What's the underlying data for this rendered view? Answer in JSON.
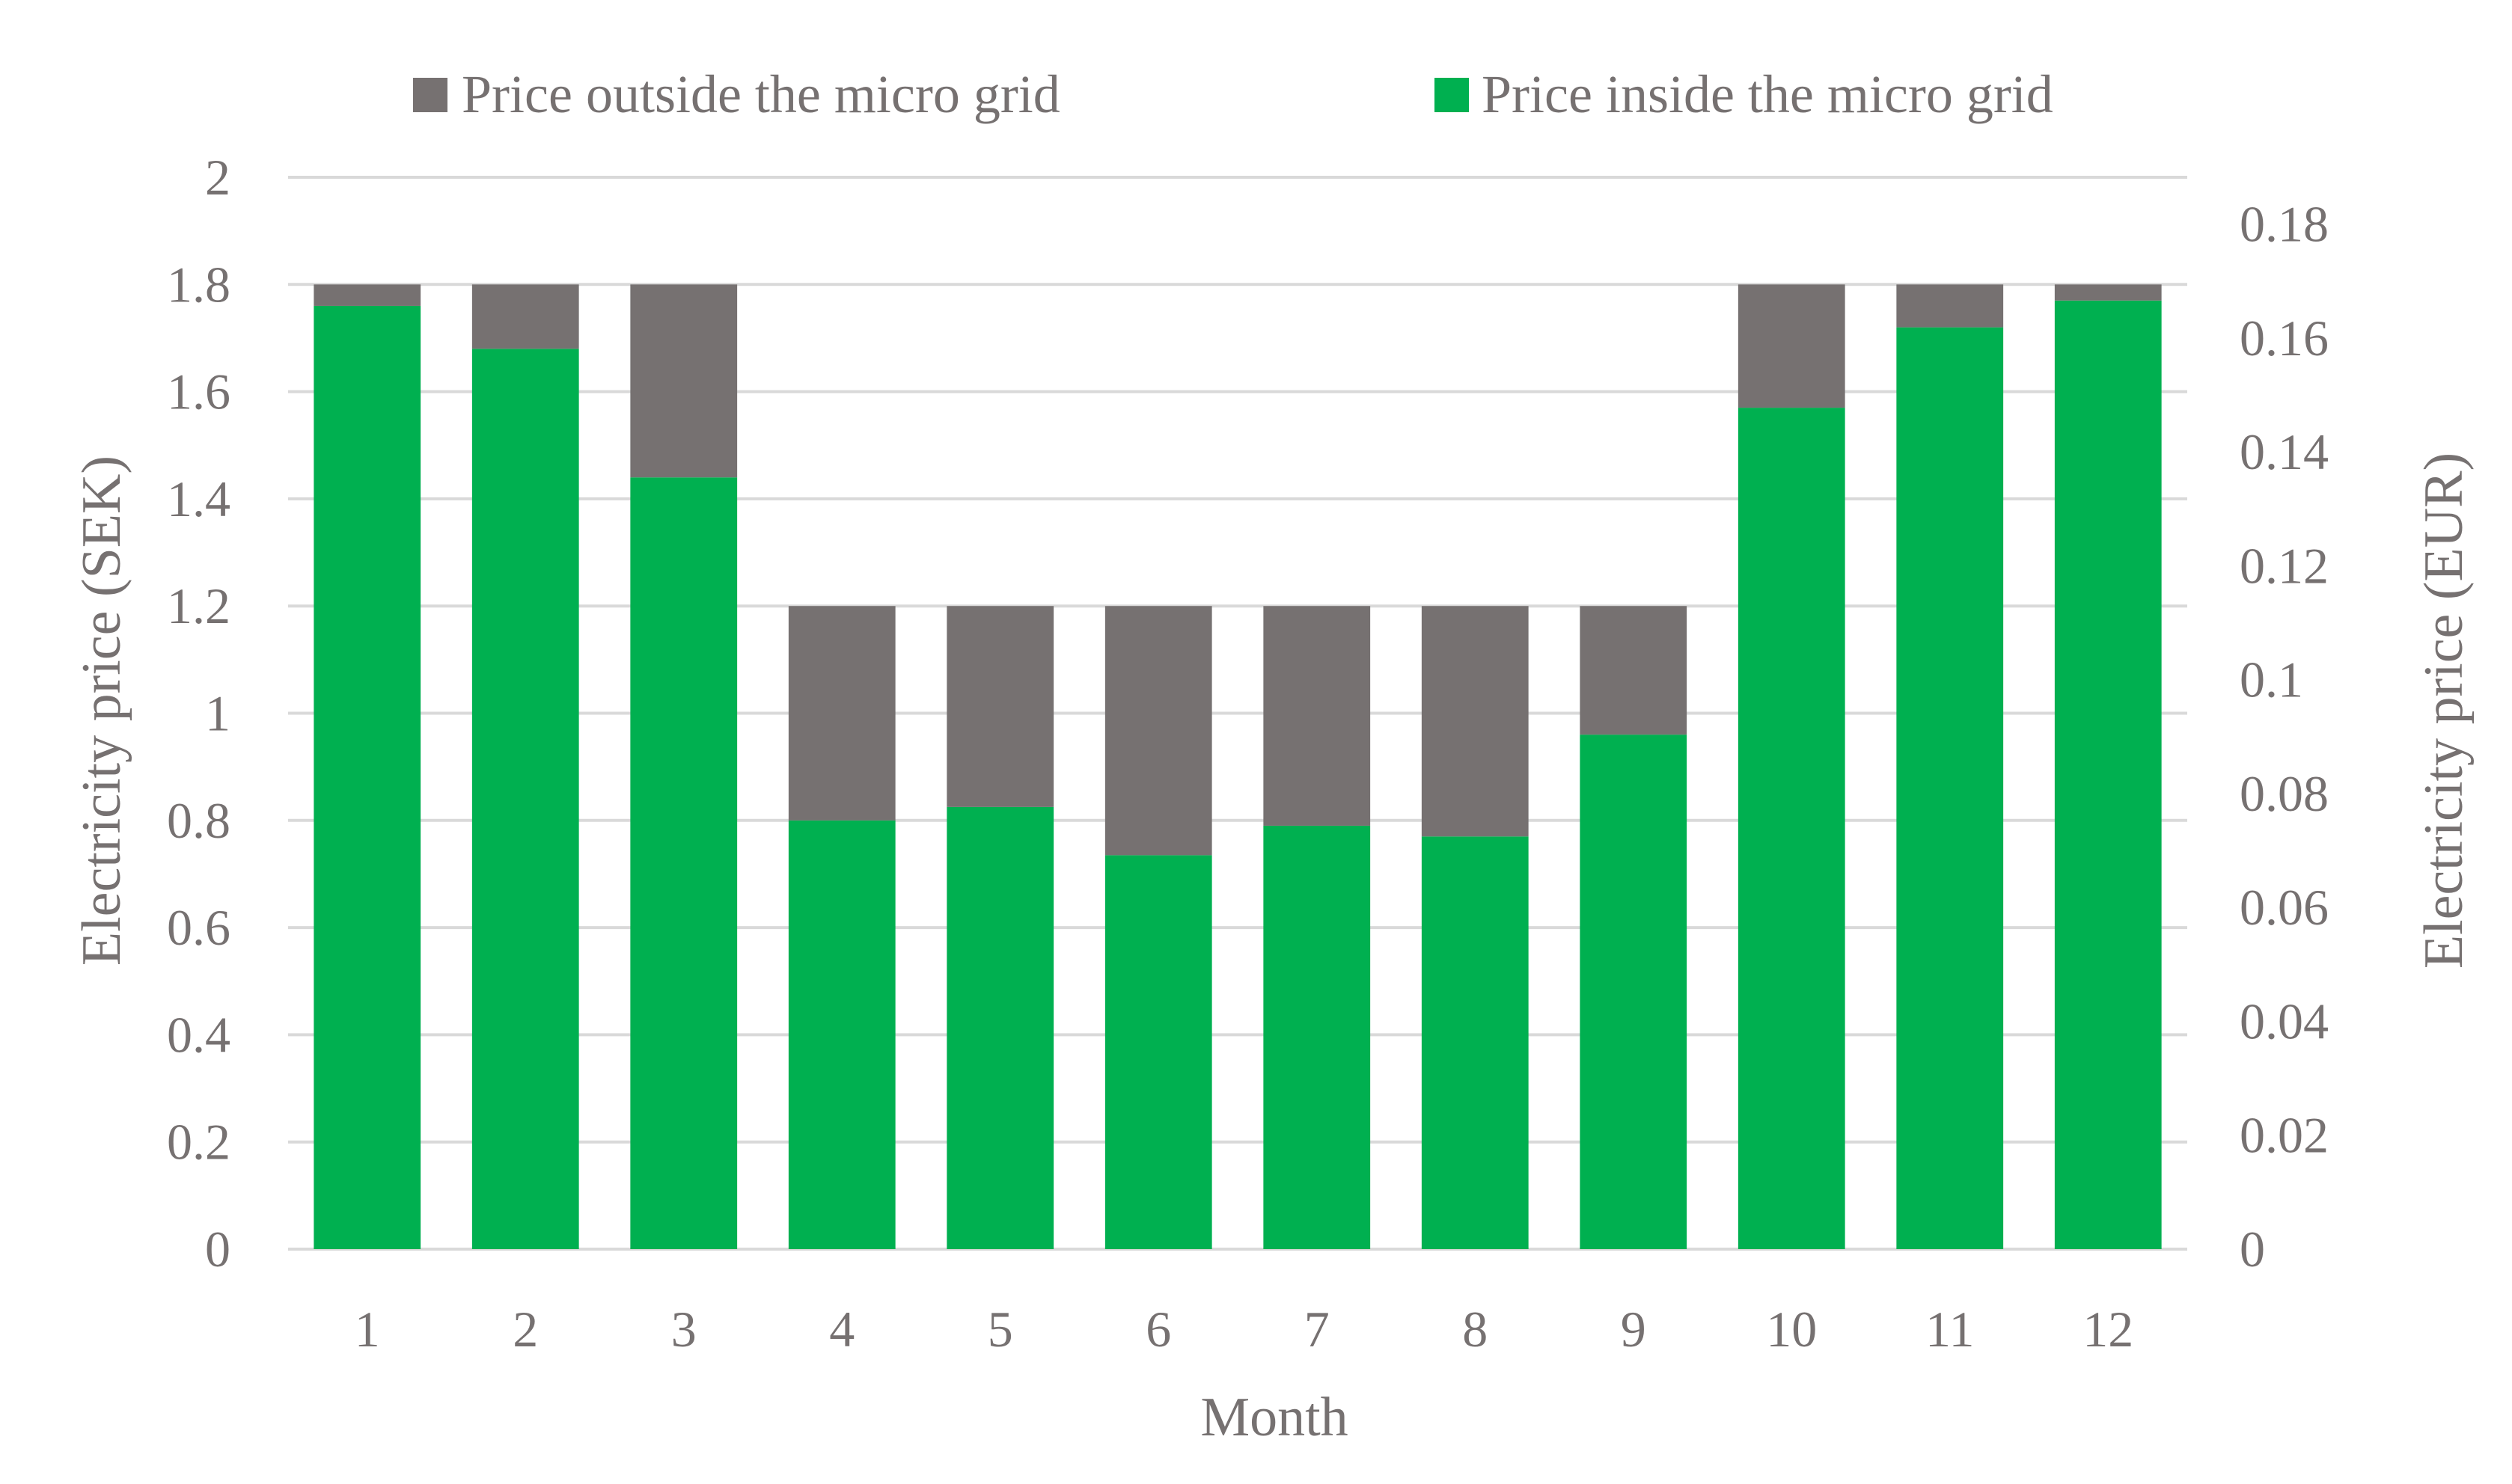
{
  "chart_data": {
    "type": "bar",
    "stacked": true,
    "categories": [
      "1",
      "2",
      "3",
      "4",
      "5",
      "6",
      "7",
      "8",
      "9",
      "10",
      "11",
      "12"
    ],
    "series": [
      {
        "name": "Price inside the micro grid",
        "color": "#00b050",
        "values": [
          1.76,
          1.68,
          1.44,
          0.8,
          0.825,
          0.735,
          0.79,
          0.77,
          0.96,
          1.57,
          1.72,
          1.77
        ]
      },
      {
        "name": "Price outside the micro grid",
        "color": "#767171",
        "values": [
          0.04,
          0.12,
          0.36,
          0.4,
          0.375,
          0.465,
          0.41,
          0.43,
          0.24,
          0.23,
          0.08,
          0.03
        ]
      }
    ],
    "legend_order": [
      1,
      0
    ],
    "legend_position": "top",
    "xlabel": "Month",
    "ylabel": "Electricity price (SEK)",
    "y2label": "Electricity price (EUR)",
    "ylim": [
      0,
      2
    ],
    "yticks": [
      "0",
      "0.2",
      "0.4",
      "0.6",
      "0.8",
      "1",
      "1.2",
      "1.4",
      "1.6",
      "1.8",
      "2"
    ],
    "y2lim": [
      0,
      0.18824
    ],
    "y2ticks": [
      "0",
      "0.02",
      "0.04",
      "0.06",
      "0.08",
      "0.1",
      "0.12",
      "0.14",
      "0.16",
      "0.18"
    ],
    "grid": true
  }
}
